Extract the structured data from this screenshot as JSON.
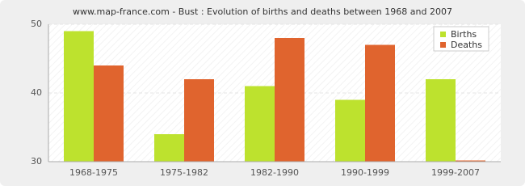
{
  "chart_data": {
    "type": "bar",
    "title": "www.map-france.com - Bust : Evolution of births and deaths between 1968 and 2007",
    "categories": [
      "1968-1975",
      "1975-1982",
      "1982-1990",
      "1990-1999",
      "1999-2007"
    ],
    "series": [
      {
        "name": "Births",
        "color": "#bde22e",
        "values": [
          49,
          34,
          41,
          39,
          42
        ]
      },
      {
        "name": "Deaths",
        "color": "#e0642e",
        "values": [
          44,
          42,
          48,
          47,
          30
        ]
      }
    ],
    "ylim": [
      30,
      50
    ],
    "yticks": [
      30,
      40,
      50
    ],
    "grid": true,
    "legend": "top-right"
  }
}
